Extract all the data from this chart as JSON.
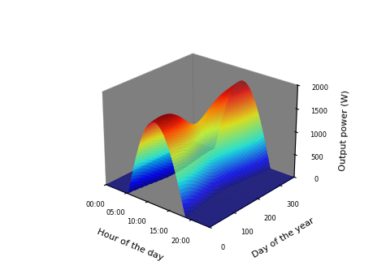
{
  "title": "",
  "xlabel": "Hour of the day",
  "ylabel": "Day of the year",
  "zlabel": "Output power (W)",
  "x_tick_labels": [
    "00:00",
    "05:00",
    "10:00",
    "15:00",
    "20:00"
  ],
  "x_tick_positions": [
    0,
    5,
    10,
    15,
    20
  ],
  "y_tick_labels": [
    "0",
    "100",
    "200",
    "300"
  ],
  "y_tick_positions": [
    0,
    100,
    200,
    300
  ],
  "z_tick_labels": [
    "0",
    "500",
    "1000",
    "1500",
    "2000"
  ],
  "z_tick_positions": [
    0,
    500,
    1000,
    1500,
    2000
  ],
  "zlim": [
    0,
    2000
  ],
  "colormap": "jet",
  "elev": 25,
  "azim": -50,
  "lat_deg": -20.75
}
